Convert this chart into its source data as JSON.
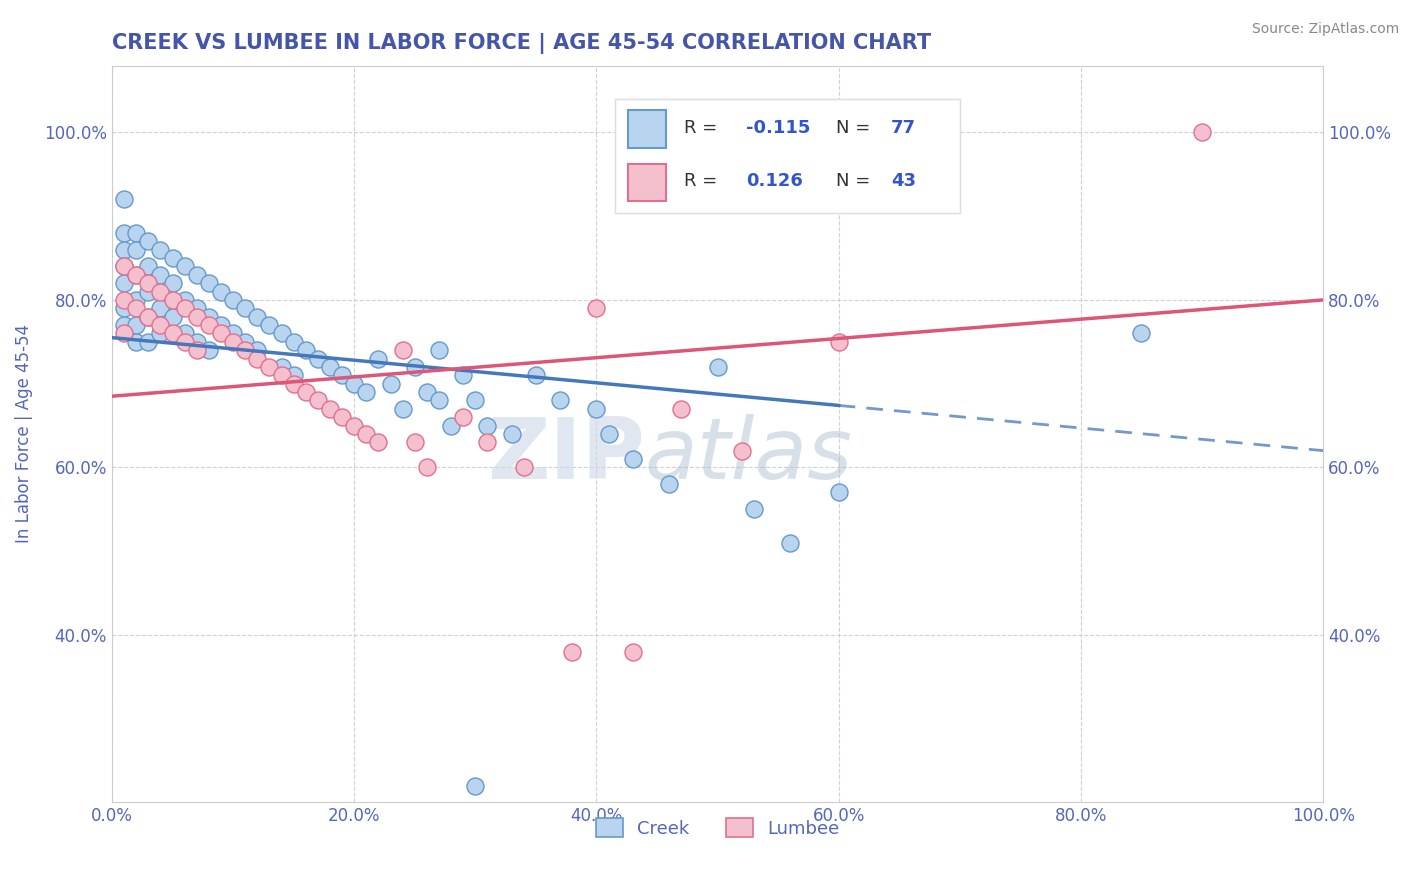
{
  "title": "CREEK VS LUMBEE IN LABOR FORCE | AGE 45-54 CORRELATION CHART",
  "ylabel": "In Labor Force | Age 45-54",
  "source": "Source: ZipAtlas.com",
  "xlim": [
    0.0,
    1.0
  ],
  "ylim": [
    0.2,
    1.08
  ],
  "xticks": [
    0.0,
    0.2,
    0.4,
    0.6,
    0.8,
    1.0
  ],
  "xticklabels": [
    "0.0%",
    "20.0%",
    "40.0%",
    "60.0%",
    "80.0%",
    "100.0%"
  ],
  "yticks": [
    0.4,
    0.6,
    0.8,
    1.0
  ],
  "yticklabels": [
    "40.0%",
    "60.0%",
    "80.0%",
    "100.0%"
  ],
  "creek_color": "#b8d4ee",
  "creek_edge_color": "#6699cc",
  "lumbee_color": "#f5c0ce",
  "lumbee_edge_color": "#e07090",
  "creek_R": -0.115,
  "creek_N": 77,
  "lumbee_R": 0.126,
  "lumbee_N": 43,
  "trend_creek_color": "#4477bb",
  "trend_lumbee_color": "#dd5577",
  "watermark_zip": "ZIP",
  "watermark_atlas": "atlas",
  "background_color": "#ffffff",
  "grid_color": "#cccccc",
  "title_color": "#4455aa",
  "tick_color": "#5566bb",
  "legend_r_color": "#3355cc",
  "creek_x": [
    0.01,
    0.01,
    0.01,
    0.01,
    0.01,
    0.01,
    0.01,
    0.02,
    0.02,
    0.02,
    0.02,
    0.02,
    0.02,
    0.03,
    0.03,
    0.03,
    0.03,
    0.03,
    0.04,
    0.04,
    0.04,
    0.04,
    0.05,
    0.05,
    0.05,
    0.06,
    0.06,
    0.06,
    0.07,
    0.07,
    0.07,
    0.08,
    0.08,
    0.08,
    0.09,
    0.09,
    0.1,
    0.1,
    0.11,
    0.11,
    0.12,
    0.12,
    0.13,
    0.14,
    0.14,
    0.15,
    0.15,
    0.16,
    0.17,
    0.18,
    0.19,
    0.2,
    0.21,
    0.22,
    0.23,
    0.24,
    0.25,
    0.26,
    0.27,
    0.27,
    0.28,
    0.29,
    0.3,
    0.31,
    0.33,
    0.35,
    0.37,
    0.4,
    0.41,
    0.43,
    0.46,
    0.5,
    0.53,
    0.56,
    0.6,
    0.85,
    0.3
  ],
  "creek_y": [
    0.92,
    0.88,
    0.86,
    0.84,
    0.82,
    0.79,
    0.77,
    0.88,
    0.86,
    0.83,
    0.8,
    0.77,
    0.75,
    0.87,
    0.84,
    0.81,
    0.78,
    0.75,
    0.86,
    0.83,
    0.79,
    0.76,
    0.85,
    0.82,
    0.78,
    0.84,
    0.8,
    0.76,
    0.83,
    0.79,
    0.75,
    0.82,
    0.78,
    0.74,
    0.81,
    0.77,
    0.8,
    0.76,
    0.79,
    0.75,
    0.78,
    0.74,
    0.77,
    0.76,
    0.72,
    0.75,
    0.71,
    0.74,
    0.73,
    0.72,
    0.71,
    0.7,
    0.69,
    0.73,
    0.7,
    0.67,
    0.72,
    0.69,
    0.74,
    0.68,
    0.65,
    0.71,
    0.68,
    0.65,
    0.64,
    0.71,
    0.68,
    0.67,
    0.64,
    0.61,
    0.58,
    0.72,
    0.55,
    0.51,
    0.57,
    0.76,
    0.22
  ],
  "lumbee_x": [
    0.01,
    0.01,
    0.01,
    0.02,
    0.02,
    0.03,
    0.03,
    0.04,
    0.04,
    0.05,
    0.05,
    0.06,
    0.06,
    0.07,
    0.07,
    0.08,
    0.09,
    0.1,
    0.11,
    0.12,
    0.13,
    0.14,
    0.15,
    0.16,
    0.17,
    0.18,
    0.19,
    0.2,
    0.21,
    0.22,
    0.24,
    0.25,
    0.26,
    0.29,
    0.31,
    0.34,
    0.38,
    0.4,
    0.43,
    0.47,
    0.52,
    0.6,
    0.9
  ],
  "lumbee_y": [
    0.84,
    0.8,
    0.76,
    0.83,
    0.79,
    0.82,
    0.78,
    0.81,
    0.77,
    0.8,
    0.76,
    0.79,
    0.75,
    0.78,
    0.74,
    0.77,
    0.76,
    0.75,
    0.74,
    0.73,
    0.72,
    0.71,
    0.7,
    0.69,
    0.68,
    0.67,
    0.66,
    0.65,
    0.64,
    0.63,
    0.74,
    0.63,
    0.6,
    0.66,
    0.63,
    0.6,
    0.38,
    0.79,
    0.38,
    0.67,
    0.62,
    0.75,
    1.0
  ],
  "creek_trend_start_x": 0.01,
  "creek_trend_end_x": 0.6,
  "creek_trend_y_at_0": 0.755,
  "creek_trend_y_at_1": 0.62,
  "lumbee_trend_y_at_0": 0.685,
  "lumbee_trend_y_at_1": 0.8
}
